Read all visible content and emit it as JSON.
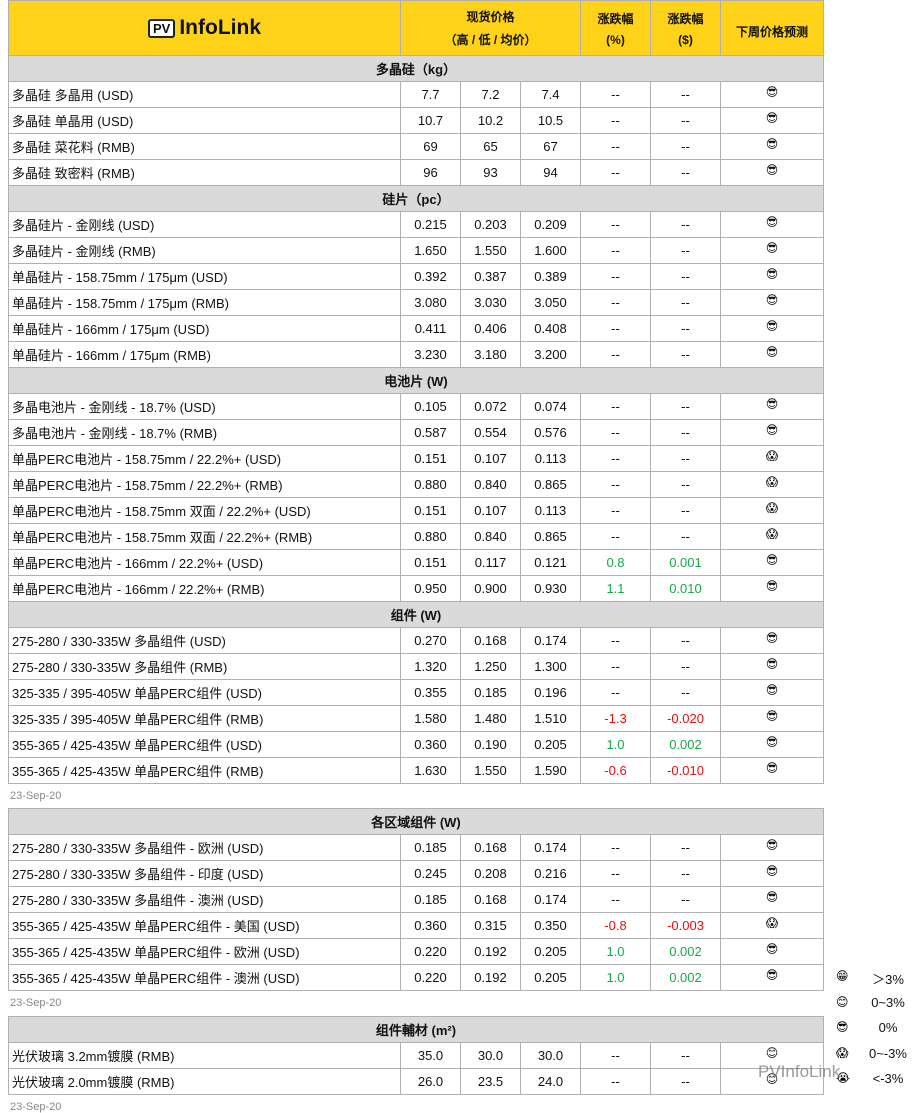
{
  "header": {
    "logo_badge": "PV",
    "logo": "InfoLink",
    "price": "现货价格",
    "price_sub": "（高 / 低 / 均价）",
    "pct": "涨跌幅",
    "pct_unit": "(%)",
    "abs": "涨跌幅",
    "abs_unit": "($)",
    "forecast": "下周价格预测"
  },
  "tables": [
    {
      "sections": [
        {
          "title": "多晶硅（kg）",
          "rows": [
            [
              "多晶硅 多晶用 (USD)",
              "7.7",
              "7.2",
              "7.4",
              "--",
              "--",
              "😎"
            ],
            [
              "多晶硅 单晶用 (USD)",
              "10.7",
              "10.2",
              "10.5",
              "--",
              "--",
              "😎"
            ],
            [
              "多晶硅 菜花料 (RMB)",
              "69",
              "65",
              "67",
              "--",
              "--",
              "😎"
            ],
            [
              "多晶硅 致密料 (RMB)",
              "96",
              "93",
              "94",
              "--",
              "--",
              "😎"
            ]
          ]
        },
        {
          "title": "硅片（pc）",
          "rows": [
            [
              "多晶硅片 - 金刚线 (USD)",
              "0.215",
              "0.203",
              "0.209",
              "--",
              "--",
              "😎"
            ],
            [
              "多晶硅片 - 金刚线 (RMB)",
              "1.650",
              "1.550",
              "1.600",
              "--",
              "--",
              "😎"
            ],
            [
              "单晶硅片 - 158.75mm / 175μm (USD)",
              "0.392",
              "0.387",
              "0.389",
              "--",
              "--",
              "😎"
            ],
            [
              "单晶硅片 - 158.75mm / 175μm (RMB)",
              "3.080",
              "3.030",
              "3.050",
              "--",
              "--",
              "😎"
            ],
            [
              "单晶硅片 - 166mm / 175μm (USD)",
              "0.411",
              "0.406",
              "0.408",
              "--",
              "--",
              "😎"
            ],
            [
              "单晶硅片 - 166mm / 175μm (RMB)",
              "3.230",
              "3.180",
              "3.200",
              "--",
              "--",
              "😎"
            ]
          ]
        },
        {
          "title": "电池片 (W)",
          "rows": [
            [
              "多晶电池片 - 金刚线 - 18.7% (USD)",
              "0.105",
              "0.072",
              "0.074",
              "--",
              "--",
              "😎"
            ],
            [
              "多晶电池片 - 金刚线 - 18.7% (RMB)",
              "0.587",
              "0.554",
              "0.576",
              "--",
              "--",
              "😎"
            ],
            [
              "单晶PERC电池片 - 158.75mm / 22.2%+ (USD)",
              "0.151",
              "0.107",
              "0.113",
              "--",
              "--",
              "😱"
            ],
            [
              "单晶PERC电池片 - 158.75mm / 22.2%+ (RMB)",
              "0.880",
              "0.840",
              "0.865",
              "--",
              "--",
              "😱"
            ],
            [
              "单晶PERC电池片 - 158.75mm 双面 / 22.2%+ (USD)",
              "0.151",
              "0.107",
              "0.113",
              "--",
              "--",
              "😱"
            ],
            [
              "单晶PERC电池片 - 158.75mm 双面 / 22.2%+ (RMB)",
              "0.880",
              "0.840",
              "0.865",
              "--",
              "--",
              "😱"
            ],
            [
              "单晶PERC电池片 - 166mm / 22.2%+ (USD)",
              "0.151",
              "0.117",
              "0.121",
              "0.8",
              "0.001",
              "😎"
            ],
            [
              "单晶PERC电池片 - 166mm / 22.2%+ (RMB)",
              "0.950",
              "0.900",
              "0.930",
              "1.1",
              "0.010",
              "😎"
            ]
          ]
        },
        {
          "title": "组件 (W)",
          "rows": [
            [
              "275-280 / 330-335W 多晶组件 (USD)",
              "0.270",
              "0.168",
              "0.174",
              "--",
              "--",
              "😎"
            ],
            [
              "275-280 / 330-335W 多晶组件 (RMB)",
              "1.320",
              "1.250",
              "1.300",
              "--",
              "--",
              "😎"
            ],
            [
              "325-335 / 395-405W 单晶PERC组件 (USD)",
              "0.355",
              "0.185",
              "0.196",
              "--",
              "--",
              "😎"
            ],
            [
              "325-335 / 395-405W 单晶PERC组件 (RMB)",
              "1.580",
              "1.480",
              "1.510",
              "-1.3",
              "-0.020",
              "😎"
            ],
            [
              "355-365 / 425-435W 单晶PERC组件 (USD)",
              "0.360",
              "0.190",
              "0.205",
              "1.0",
              "0.002",
              "😎"
            ],
            [
              "355-365 / 425-435W 单晶PERC组件 (RMB)",
              "1.630",
              "1.550",
              "1.590",
              "-0.6",
              "-0.010",
              "😎"
            ]
          ]
        }
      ],
      "date": "23-Sep-20"
    },
    {
      "sections": [
        {
          "title": "各区域组件 (W)",
          "rows": [
            [
              "275-280 / 330-335W  多晶组件 - 欧洲 (USD)",
              "0.185",
              "0.168",
              "0.174",
              "--",
              "--",
              "😎"
            ],
            [
              "275-280 / 330-335W  多晶组件 - 印度 (USD)",
              "0.245",
              "0.208",
              "0.216",
              "--",
              "--",
              "😎"
            ],
            [
              "275-280 / 330-335W  多晶组件 - 澳洲 (USD)",
              "0.185",
              "0.168",
              "0.174",
              "--",
              "--",
              "😎"
            ],
            [
              "355-365 / 425-435W 单晶PERC组件 - 美国 (USD)",
              "0.360",
              "0.315",
              "0.350",
              "-0.8",
              "-0.003",
              "😱"
            ],
            [
              "355-365 / 425-435W 单晶PERC组件 - 欧洲 (USD)",
              "0.220",
              "0.192",
              "0.205",
              "1.0",
              "0.002",
              "😎"
            ],
            [
              "355-365 / 425-435W 单晶PERC组件 - 澳洲 (USD)",
              "0.220",
              "0.192",
              "0.205",
              "1.0",
              "0.002",
              "😎"
            ]
          ]
        }
      ],
      "date": "23-Sep-20"
    },
    {
      "sections": [
        {
          "title": "组件輔材 (m²)",
          "rows": [
            [
              "光伏玻璃 3.2mm镀膜 (RMB)",
              "35.0",
              "30.0",
              "30.0",
              "--",
              "--",
              "😊"
            ],
            [
              "光伏玻璃 2.0mm镀膜 (RMB)",
              "26.0",
              "23.5",
              "24.0",
              "--",
              "--",
              "😊"
            ]
          ]
        }
      ],
      "date": "23-Sep-20"
    }
  ],
  "legend": [
    {
      "icon": "😁",
      "label": "＞3%"
    },
    {
      "icon": "😊",
      "label": "0~3%"
    },
    {
      "icon": "😎",
      "label": "0%"
    },
    {
      "icon": "😱",
      "label": "0~-3%"
    },
    {
      "icon": "😭",
      "label": "<-3%"
    }
  ],
  "watermark": "PVInfoLink"
}
